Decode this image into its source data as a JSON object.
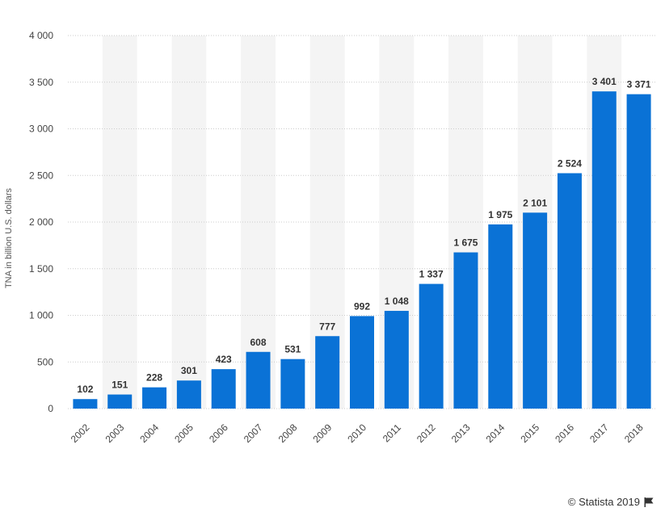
{
  "chart_data": {
    "type": "bar",
    "categories": [
      "2002",
      "2003",
      "2004",
      "2005",
      "2006",
      "2007",
      "2008",
      "2009",
      "2010",
      "2011",
      "2012",
      "2013",
      "2014",
      "2015",
      "2016",
      "2017",
      "2018"
    ],
    "values": [
      102,
      151,
      228,
      301,
      423,
      608,
      531,
      777,
      992,
      1048,
      1337,
      1675,
      1975,
      2101,
      2524,
      3401,
      3371
    ],
    "value_labels": [
      "102",
      "151",
      "228",
      "301",
      "423",
      "608",
      "531",
      "777",
      "992",
      "1 048",
      "1 337",
      "1 675",
      "1 975",
      "2 101",
      "2 524",
      "3 401",
      "3 371"
    ],
    "ylabel": "TNA in billion U.S. dollars",
    "xlabel": "",
    "ylim": [
      0,
      4000
    ],
    "yticks": [
      0,
      500,
      1000,
      1500,
      2000,
      2500,
      3000,
      3500,
      4000
    ],
    "ytick_labels": [
      "0",
      "500",
      "1 000",
      "1 500",
      "2 000",
      "2 500",
      "3 000",
      "3 500",
      "4 000"
    ],
    "grid": true,
    "legend": "none",
    "colors": {
      "bar": "#0a72d6",
      "band": "#f4f4f4",
      "grid": "#cccccc"
    }
  },
  "footer": {
    "credit": "© Statista 2019",
    "icon": "flag-icon"
  }
}
